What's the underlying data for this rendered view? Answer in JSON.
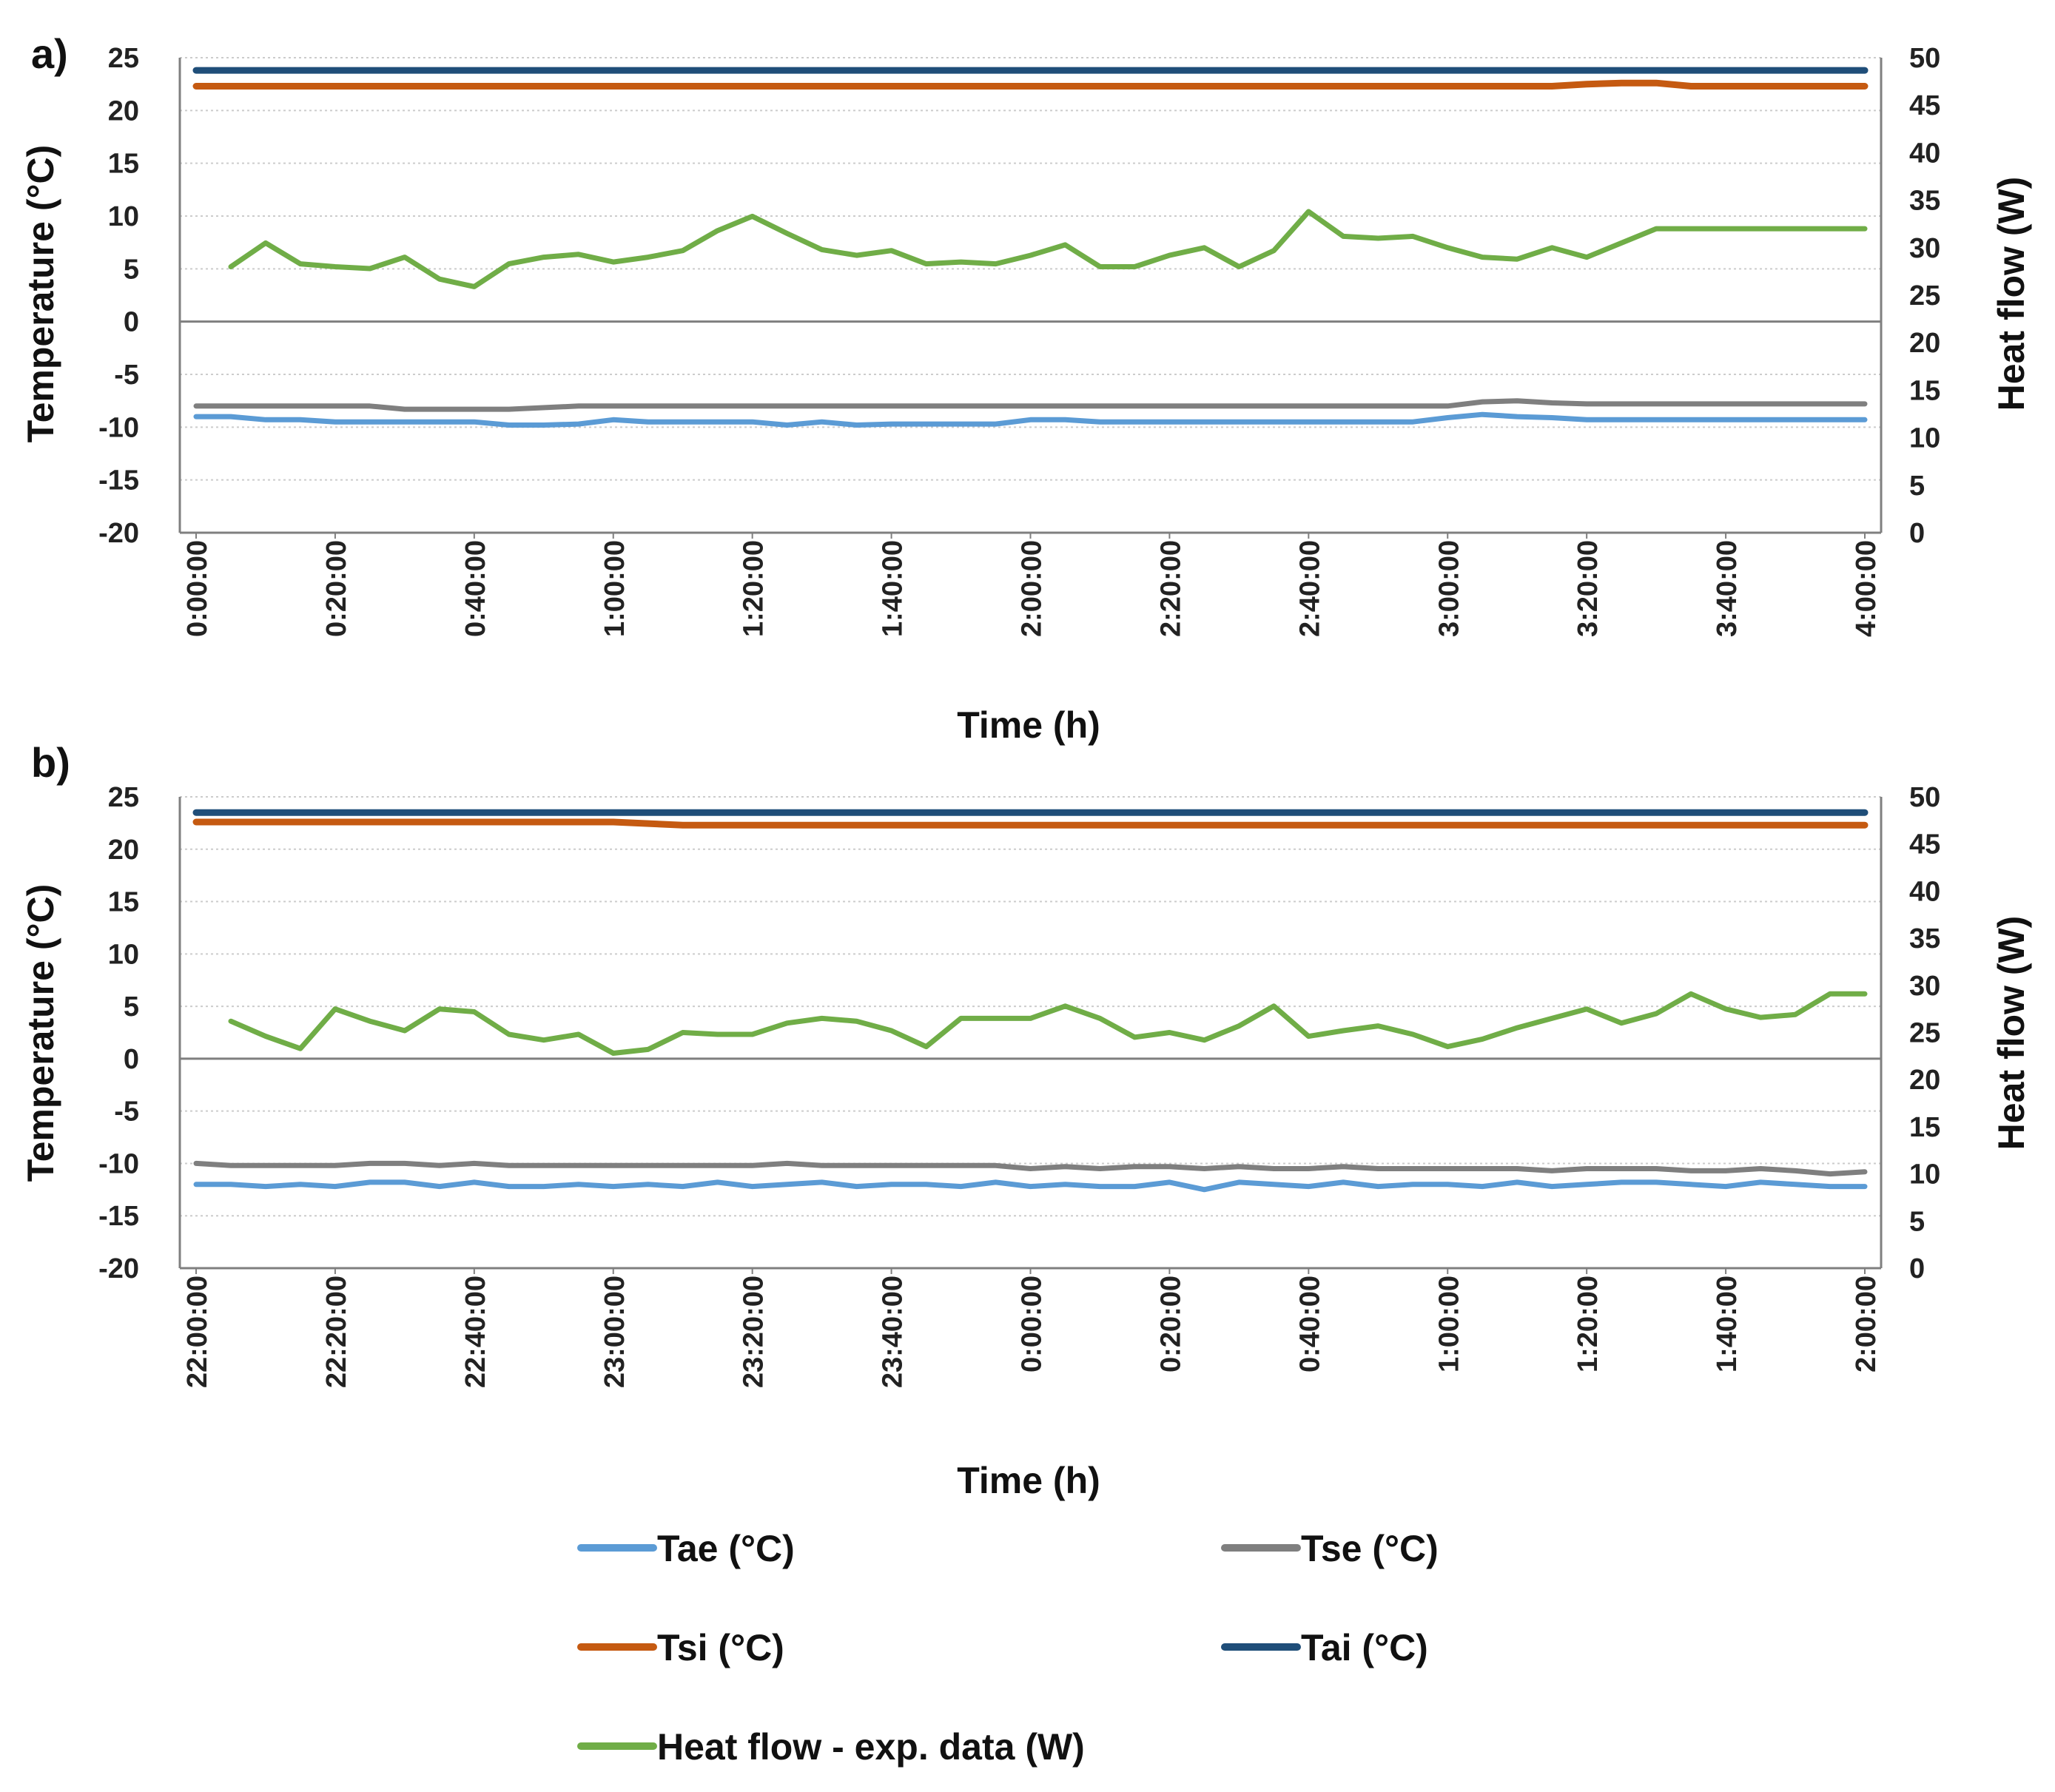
{
  "colors": {
    "Tae": "#5b9bd5",
    "Tse": "#7f7f7f",
    "Tsi": "#c55a11",
    "Tai": "#1f4e79",
    "HeatFlow": "#70ad47",
    "grid": "#cccccc",
    "zero": "#7f7f7f"
  },
  "legend": [
    {
      "key": "Tae",
      "label": "Tae (°C)"
    },
    {
      "key": "Tse",
      "label": "Tse (°C)"
    },
    {
      "key": "Tsi",
      "label": "Tsi (°C)"
    },
    {
      "key": "Tai",
      "label": "Tai (°C)"
    },
    {
      "key": "HeatFlow",
      "label": "Heat flow - exp. data (W)"
    }
  ],
  "chart_data": [
    {
      "panel_label": "a)",
      "type": "line",
      "xlabel": "Time (h)",
      "ylabel": "Temperature (°C)",
      "y2label": "Heat flow (W)",
      "ylim": [
        -20,
        25
      ],
      "y2lim": [
        0,
        50
      ],
      "yticks": [
        "25",
        "20",
        "15",
        "10",
        "5",
        "0",
        "-5",
        "-10",
        "-15",
        "-20"
      ],
      "y2ticks": [
        "50",
        "45",
        "40",
        "35",
        "30",
        "25",
        "20",
        "15",
        "10",
        "5",
        "0"
      ],
      "xlim": [
        0,
        240
      ],
      "x_unit": "minutes",
      "xticks": [
        "0:00:00",
        "0:20:00",
        "0:40:00",
        "1:00:00",
        "1:20:00",
        "1:40:00",
        "2:00:00",
        "2:20:00",
        "2:40:00",
        "3:00:00",
        "3:20:00",
        "3:40:00",
        "4:00:00"
      ],
      "series": [
        {
          "key": "Tai",
          "name": "Tai (°C)",
          "axis": "left",
          "x": [
            0,
            240
          ],
          "values": [
            23.8,
            23.8
          ]
        },
        {
          "key": "Tsi",
          "name": "Tsi (°C)",
          "axis": "left",
          "x": [
            0,
            195,
            200,
            205,
            210,
            215,
            220,
            240
          ],
          "values": [
            22.3,
            22.3,
            22.5,
            22.6,
            22.6,
            22.3,
            22.3,
            22.3
          ]
        },
        {
          "key": "Tse",
          "name": "Tse (°C)",
          "axis": "left",
          "x": [
            0,
            25,
            30,
            45,
            55,
            180,
            185,
            190,
            195,
            200,
            240
          ],
          "values": [
            -8.0,
            -8.0,
            -8.3,
            -8.3,
            -8.0,
            -8.0,
            -7.6,
            -7.5,
            -7.7,
            -7.8,
            -7.8
          ]
        },
        {
          "key": "Tae",
          "name": "Tae (°C)",
          "axis": "left",
          "x": [
            0,
            5,
            10,
            15,
            20,
            25,
            30,
            35,
            40,
            45,
            50,
            55,
            60,
            65,
            70,
            75,
            80,
            85,
            90,
            95,
            100,
            105,
            110,
            115,
            120,
            125,
            130,
            135,
            140,
            145,
            150,
            155,
            160,
            165,
            170,
            175,
            180,
            185,
            190,
            195,
            200,
            205,
            210,
            215,
            220,
            225,
            230,
            235,
            240
          ],
          "values": [
            -9.0,
            -9.0,
            -9.3,
            -9.3,
            -9.5,
            -9.5,
            -9.5,
            -9.5,
            -9.5,
            -9.8,
            -9.8,
            -9.7,
            -9.3,
            -9.5,
            -9.5,
            -9.5,
            -9.5,
            -9.8,
            -9.5,
            -9.8,
            -9.7,
            -9.7,
            -9.7,
            -9.7,
            -9.3,
            -9.3,
            -9.5,
            -9.5,
            -9.5,
            -9.5,
            -9.5,
            -9.5,
            -9.5,
            -9.5,
            -9.5,
            -9.5,
            -9.1,
            -8.8,
            -9.0,
            -9.1,
            -9.3,
            -9.3,
            -9.3,
            -9.3,
            -9.3,
            -9.3,
            -9.3,
            -9.3,
            -9.3
          ]
        },
        {
          "key": "HeatFlow",
          "name": "Heat flow - exp. data (W)",
          "axis": "right",
          "x": [
            5,
            10,
            15,
            20,
            25,
            30,
            35,
            40,
            45,
            50,
            55,
            60,
            65,
            70,
            75,
            80,
            85,
            90,
            95,
            100,
            105,
            110,
            115,
            120,
            125,
            130,
            135,
            140,
            145,
            150,
            155,
            160,
            165,
            170,
            175,
            180,
            185,
            190,
            195,
            200,
            205,
            210,
            215,
            220,
            225,
            230,
            235,
            240
          ],
          "values": [
            28.0,
            30.5,
            28.3,
            28.0,
            27.8,
            29.0,
            26.7,
            25.9,
            28.3,
            29.0,
            29.3,
            28.5,
            29.0,
            29.7,
            31.8,
            33.3,
            31.5,
            29.8,
            29.2,
            29.7,
            28.3,
            28.5,
            28.3,
            29.2,
            30.3,
            28.0,
            28.0,
            29.2,
            30.0,
            28.0,
            29.7,
            33.8,
            31.2,
            31.0,
            31.2,
            30.0,
            29.0,
            28.8,
            30.0,
            29.0,
            30.5,
            32.0,
            32.0,
            32.0,
            32.0,
            32.0,
            32.0,
            32.0
          ]
        }
      ]
    },
    {
      "panel_label": "b)",
      "type": "line",
      "xlabel": "Time (h)",
      "ylabel": "Temperature (°C)",
      "y2label": "Heat flow (W)",
      "ylim": [
        -20,
        25
      ],
      "y2lim": [
        0,
        50
      ],
      "yticks": [
        "25",
        "20",
        "15",
        "10",
        "5",
        "0",
        "-5",
        "-10",
        "-15",
        "-20"
      ],
      "y2ticks": [
        "50",
        "45",
        "40",
        "35",
        "30",
        "25",
        "20",
        "15",
        "10",
        "5",
        "0"
      ],
      "xlim": [
        0,
        240
      ],
      "x_unit": "minutes since 22:00:00",
      "xticks": [
        "22:00:00",
        "22:20:00",
        "22:40:00",
        "23:00:00",
        "23:20:00",
        "23:40:00",
        "0:00:00",
        "0:20:00",
        "0:40:00",
        "1:00:00",
        "1:20:00",
        "1:40:00",
        "2:00:00"
      ],
      "series": [
        {
          "key": "Tai",
          "name": "Tai (°C)",
          "axis": "left",
          "x": [
            0,
            240
          ],
          "values": [
            23.5,
            23.5
          ]
        },
        {
          "key": "Tsi",
          "name": "Tsi (°C)",
          "axis": "left",
          "x": [
            0,
            60,
            70,
            240
          ],
          "values": [
            22.6,
            22.6,
            22.3,
            22.3
          ]
        },
        {
          "key": "Tse",
          "name": "Tse (°C)",
          "axis": "left",
          "x": [
            0,
            5,
            10,
            15,
            20,
            25,
            30,
            35,
            40,
            45,
            50,
            55,
            60,
            65,
            70,
            75,
            80,
            85,
            90,
            95,
            100,
            105,
            110,
            115,
            120,
            125,
            130,
            135,
            140,
            145,
            150,
            155,
            160,
            165,
            170,
            175,
            180,
            185,
            190,
            195,
            200,
            205,
            210,
            215,
            220,
            225,
            230,
            235,
            240
          ],
          "values": [
            -10.0,
            -10.2,
            -10.2,
            -10.2,
            -10.2,
            -10.0,
            -10.0,
            -10.2,
            -10.0,
            -10.2,
            -10.2,
            -10.2,
            -10.2,
            -10.2,
            -10.2,
            -10.2,
            -10.2,
            -10.0,
            -10.2,
            -10.2,
            -10.2,
            -10.2,
            -10.2,
            -10.2,
            -10.5,
            -10.3,
            -10.5,
            -10.3,
            -10.3,
            -10.5,
            -10.3,
            -10.5,
            -10.5,
            -10.3,
            -10.5,
            -10.5,
            -10.5,
            -10.5,
            -10.5,
            -10.7,
            -10.5,
            -10.5,
            -10.5,
            -10.7,
            -10.7,
            -10.5,
            -10.7,
            -11.0,
            -10.8
          ]
        },
        {
          "key": "Tae",
          "name": "Tae (°C)",
          "axis": "left",
          "x": [
            0,
            5,
            10,
            15,
            20,
            25,
            30,
            35,
            40,
            45,
            50,
            55,
            60,
            65,
            70,
            75,
            80,
            85,
            90,
            95,
            100,
            105,
            110,
            115,
            120,
            125,
            130,
            135,
            140,
            145,
            150,
            155,
            160,
            165,
            170,
            175,
            180,
            185,
            190,
            195,
            200,
            205,
            210,
            215,
            220,
            225,
            230,
            235,
            240
          ],
          "values": [
            -12.0,
            -12.0,
            -12.2,
            -12.0,
            -12.2,
            -11.8,
            -11.8,
            -12.2,
            -11.8,
            -12.2,
            -12.2,
            -12.0,
            -12.2,
            -12.0,
            -12.2,
            -11.8,
            -12.2,
            -12.0,
            -11.8,
            -12.2,
            -12.0,
            -12.0,
            -12.2,
            -11.8,
            -12.2,
            -12.0,
            -12.2,
            -12.2,
            -11.8,
            -12.5,
            -11.8,
            -12.0,
            -12.2,
            -11.8,
            -12.2,
            -12.0,
            -12.0,
            -12.2,
            -11.8,
            -12.2,
            -12.0,
            -11.8,
            -11.8,
            -12.0,
            -12.2,
            -11.8,
            -12.0,
            -12.2,
            -12.2
          ]
        },
        {
          "key": "HeatFlow",
          "name": "Heat flow - exp. data (W)",
          "axis": "right",
          "x": [
            5,
            10,
            15,
            20,
            25,
            30,
            35,
            40,
            45,
            50,
            55,
            60,
            65,
            70,
            75,
            80,
            85,
            90,
            95,
            100,
            105,
            110,
            115,
            120,
            125,
            130,
            135,
            140,
            145,
            150,
            155,
            160,
            165,
            170,
            175,
            180,
            185,
            190,
            195,
            200,
            205,
            210,
            215,
            220,
            225,
            230,
            235,
            240
          ],
          "values": [
            26.2,
            24.6,
            23.3,
            27.5,
            26.2,
            25.2,
            27.5,
            27.2,
            24.8,
            24.2,
            24.8,
            22.8,
            23.2,
            25.0,
            24.8,
            24.8,
            26.0,
            26.5,
            26.2,
            25.2,
            23.5,
            26.5,
            26.5,
            26.5,
            27.8,
            26.5,
            24.5,
            25.0,
            24.2,
            25.7,
            27.8,
            24.6,
            25.2,
            25.7,
            24.8,
            23.5,
            24.3,
            25.5,
            26.5,
            27.5,
            26.0,
            27.0,
            29.1,
            27.5,
            26.6,
            26.9,
            29.1,
            29.1
          ]
        }
      ]
    }
  ]
}
